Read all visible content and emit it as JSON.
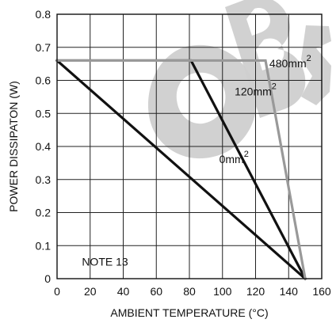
{
  "chart_data": {
    "type": "line",
    "title": "",
    "xlabel": "AMBIENT TEMPERATURE (°C)",
    "ylabel": "POWER DISSIPATON (W)",
    "xlim": [
      0,
      160
    ],
    "ylim": [
      0,
      0.8
    ],
    "x_ticks": [
      0,
      20,
      40,
      60,
      80,
      100,
      120,
      140,
      160
    ],
    "y_ticks": [
      0,
      0.1,
      0.2,
      0.3,
      0.4,
      0.5,
      0.6,
      0.7,
      0.8
    ],
    "x_tick_labels": [
      "0",
      "20",
      "40",
      "60",
      "80",
      "100",
      "120",
      "140",
      "160"
    ],
    "y_tick_labels": [
      "0",
      "0.1",
      "0.2",
      "0.3",
      "0.4",
      "0.5",
      "0.6",
      "0.7",
      "0.8"
    ],
    "grid": true,
    "series": [
      {
        "name": "0mm²",
        "label_main": "0mm",
        "label_sup": "2",
        "color": "#111111",
        "x": [
          0,
          150
        ],
        "y": [
          0.66,
          0
        ]
      },
      {
        "name": "120mm²",
        "label_main": "120mm",
        "label_sup": "2",
        "color": "#111111",
        "x": [
          0,
          81,
          150
        ],
        "y": [
          0.66,
          0.66,
          0
        ]
      },
      {
        "name": "480mm²",
        "label_main": "480mm",
        "label_sup": "2",
        "color": "#999999",
        "x": [
          0,
          126,
          150
        ],
        "y": [
          0.66,
          0.66,
          0
        ]
      }
    ],
    "annotations": [
      "NOTE 13"
    ]
  },
  "watermark": {
    "text": "OBS",
    "color": "#cfcfcf"
  }
}
